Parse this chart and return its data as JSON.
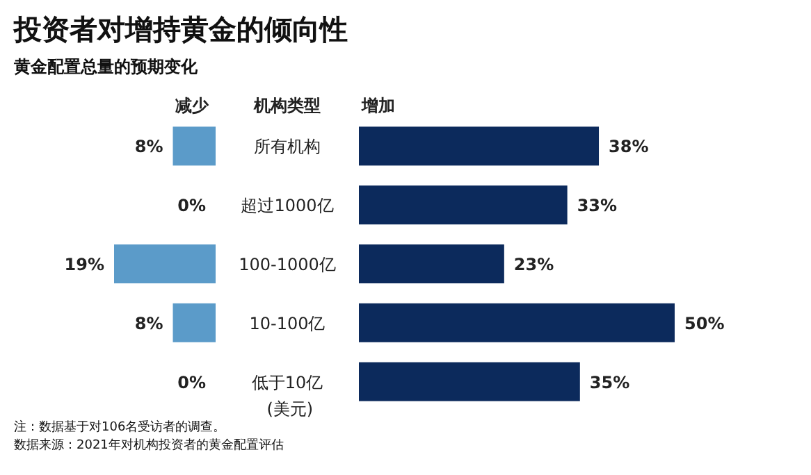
{
  "chart_data": [
    {
      "type": "bar",
      "orientation": "horizontal",
      "title": "投资者对增持黄金的倾向性",
      "subtitle": "黄金配置总量的预期变化",
      "ylabel": "机构类型",
      "categories": [
        "所有机构",
        "超过1000亿",
        "100-1000亿",
        "10-100亿",
        "低于10亿 (美元)"
      ],
      "series": [
        {
          "name": "减少",
          "color": "#5b9bc9",
          "values": [
            8,
            0,
            19,
            8,
            0
          ],
          "value_labels": [
            "8%",
            "0%",
            "19%",
            "8%",
            "0%"
          ]
        }
      ],
      "tick_labels": "y",
      "annotations": [
        "注：数据基于对106名受访者的调查。",
        "数据来源：2021年对机构投资者的黄金配置评估"
      ]
    },
    {
      "type": "bar",
      "orientation": "horizontal",
      "categories": [
        null,
        null,
        null,
        null,
        null
      ],
      "series": [
        {
          "name": "增加",
          "color": "#0c2a5c",
          "values": [
            38,
            33,
            23,
            50,
            35
          ],
          "value_labels": [
            "38%",
            "33%",
            "23%",
            "50%",
            "35%"
          ]
        }
      ],
      "tick_labels": false
    }
  ]
}
